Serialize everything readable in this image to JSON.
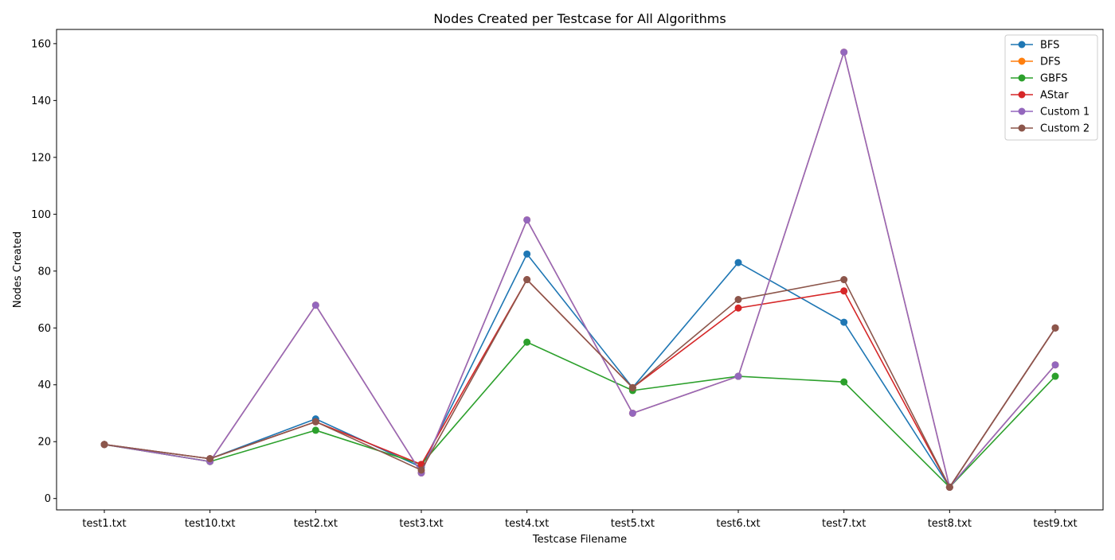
{
  "chart_data": {
    "type": "line",
    "title": "Nodes Created per Testcase for All Algorithms",
    "xlabel": "Testcase Filename",
    "ylabel": "Nodes Created",
    "categories": [
      "test1.txt",
      "test10.txt",
      "test2.txt",
      "test3.txt",
      "test4.txt",
      "test5.txt",
      "test6.txt",
      "test7.txt",
      "test8.txt",
      "test9.txt"
    ],
    "ylim": [
      -4,
      165
    ],
    "yticks": [
      0,
      20,
      40,
      60,
      80,
      100,
      120,
      140,
      160
    ],
    "grid": false,
    "legend_position": "top-right",
    "series": [
      {
        "name": "BFS",
        "color": "#1f77b4",
        "values": [
          19,
          14,
          28,
          11,
          86,
          39,
          83,
          62,
          4,
          60
        ]
      },
      {
        "name": "DFS",
        "color": "#ff7f0e",
        "values": [
          19,
          13,
          68,
          9,
          98,
          30,
          43,
          157,
          4,
          47
        ]
      },
      {
        "name": "GBFS",
        "color": "#2ca02c",
        "values": [
          19,
          13,
          24,
          12,
          55,
          38,
          43,
          41,
          4,
          43
        ]
      },
      {
        "name": "AStar",
        "color": "#d62728",
        "values": [
          19,
          14,
          27,
          12,
          77,
          39,
          67,
          73,
          4,
          60
        ]
      },
      {
        "name": "Custom 1",
        "color": "#9467bd",
        "values": [
          19,
          13,
          68,
          9,
          98,
          30,
          43,
          157,
          4,
          47
        ]
      },
      {
        "name": "Custom 2",
        "color": "#8c564b",
        "values": [
          19,
          14,
          27,
          10,
          77,
          39,
          70,
          77,
          4,
          60
        ]
      }
    ]
  }
}
